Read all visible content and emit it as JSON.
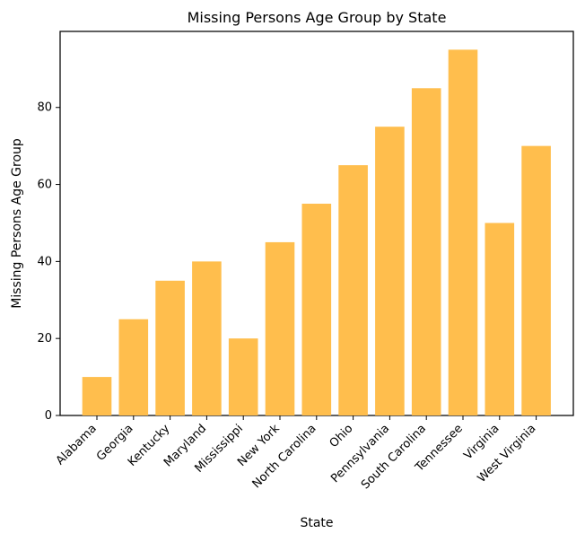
{
  "chart_data": {
    "type": "bar",
    "title": "Missing Persons Age Group by State",
    "xlabel": "State",
    "ylabel": "Missing Persons Age Group",
    "categories": [
      "Alabama",
      "Georgia",
      "Kentucky",
      "Maryland",
      "Mississippi",
      "New York",
      "North Carolina",
      "Ohio",
      "Pennsylvania",
      "South Carolina",
      "Tennessee",
      "Virginia",
      "West Virginia"
    ],
    "values": [
      10,
      25,
      35,
      40,
      20,
      45,
      55,
      65,
      75,
      85,
      95,
      50,
      70
    ],
    "ylim": [
      0,
      99.75
    ],
    "yticks": [
      0,
      20,
      40,
      60,
      80
    ],
    "grid": false,
    "bar_color": "#ffbe4d"
  }
}
